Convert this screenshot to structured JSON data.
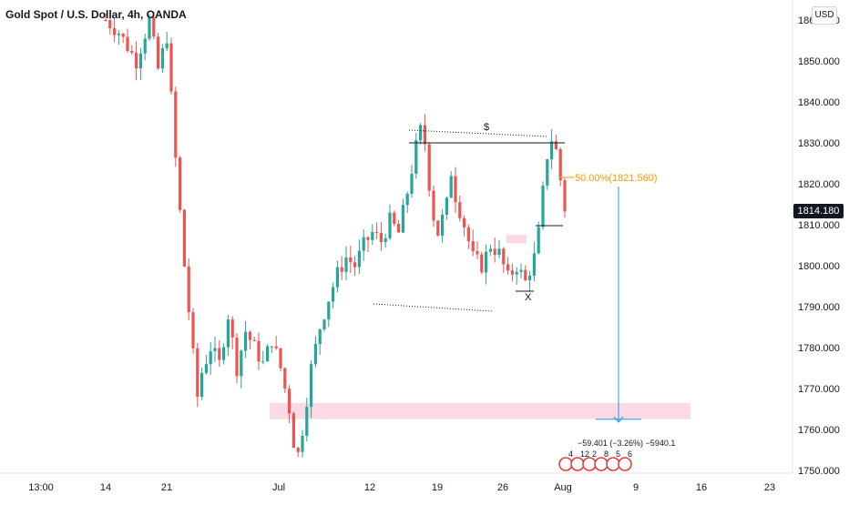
{
  "header": {
    "title": "Gold Spot / U.S. Dollar, 4h, OANDA",
    "currency_button": "USD"
  },
  "current_price": "1814.180",
  "colors": {
    "up": "#26a69a",
    "down": "#ef5350",
    "wick_dark": "#131722",
    "zone": "#f8bbd0",
    "fib": "#ff9800",
    "projection": "#2196f3",
    "tag_bg": "#131722"
  },
  "chart_data": {
    "type": "candlestick",
    "title": "Gold Spot / U.S. Dollar, 4h, OANDA",
    "ylim": [
      1748,
      1863
    ],
    "y_ticks": [
      "1750.000",
      "1760.000",
      "1770.000",
      "1780.000",
      "1790.000",
      "1800.000",
      "1810.000",
      "1820.000",
      "1830.000",
      "1840.000",
      "1850.000",
      "1860.000"
    ],
    "x_ticks": [
      "13:00",
      "14",
      "21",
      "Jul",
      "12",
      "19",
      "26",
      "Aug",
      "9",
      "16",
      "23"
    ],
    "price_path": [
      [
        0,
        1860
      ],
      [
        3,
        1857
      ],
      [
        7,
        1850
      ],
      [
        10,
        1860
      ],
      [
        12,
        1848
      ],
      [
        14,
        1856
      ],
      [
        16,
        1826
      ],
      [
        18,
        1800
      ],
      [
        20,
        1778
      ],
      [
        21,
        1768
      ],
      [
        22,
        1774
      ],
      [
        24,
        1780
      ],
      [
        26,
        1776
      ],
      [
        28,
        1788
      ],
      [
        30,
        1775
      ],
      [
        32,
        1784
      ],
      [
        34,
        1780
      ],
      [
        36,
        1776
      ],
      [
        38,
        1782
      ],
      [
        40,
        1775
      ],
      [
        42,
        1765
      ],
      [
        43,
        1757
      ],
      [
        44,
        1754
      ],
      [
        45,
        1760
      ],
      [
        47,
        1775
      ],
      [
        49,
        1785
      ],
      [
        51,
        1792
      ],
      [
        53,
        1798
      ],
      [
        55,
        1802
      ],
      [
        57,
        1800
      ],
      [
        59,
        1805
      ],
      [
        61,
        1808
      ],
      [
        63,
        1806
      ],
      [
        65,
        1811
      ],
      [
        67,
        1808
      ],
      [
        69,
        1818
      ],
      [
        71,
        1829
      ],
      [
        72,
        1833
      ],
      [
        73,
        1830
      ],
      [
        74,
        1820
      ],
      [
        75,
        1812
      ],
      [
        76,
        1808
      ],
      [
        78,
        1815
      ],
      [
        79,
        1823
      ],
      [
        80,
        1817
      ],
      [
        82,
        1810
      ],
      [
        84,
        1802
      ],
      [
        86,
        1800
      ],
      [
        88,
        1805
      ],
      [
        90,
        1803
      ],
      [
        92,
        1797
      ],
      [
        94,
        1800
      ],
      [
        96,
        1796
      ],
      [
        98,
        1802
      ],
      [
        99,
        1808
      ],
      [
        100,
        1818
      ],
      [
        101,
        1827
      ],
      [
        102,
        1831
      ],
      [
        103,
        1828
      ],
      [
        104,
        1821
      ],
      [
        105,
        1814
      ]
    ],
    "annotations": {
      "fib_label": "50.00%(1821.560)",
      "top_label": "$",
      "bottom_label": "X",
      "measure_label": "−59.401 (−3.26%) −5940.1",
      "resistance_level": 1830,
      "fib_level": 1821.56,
      "demand_zone": [
        1762.5,
        1766.5
      ],
      "supply_zone": [
        1805.5,
        1807.5
      ],
      "projection_target": 1762.5
    },
    "event_counts": [
      "4",
      "12",
      "2",
      "8",
      "5",
      "6"
    ]
  }
}
